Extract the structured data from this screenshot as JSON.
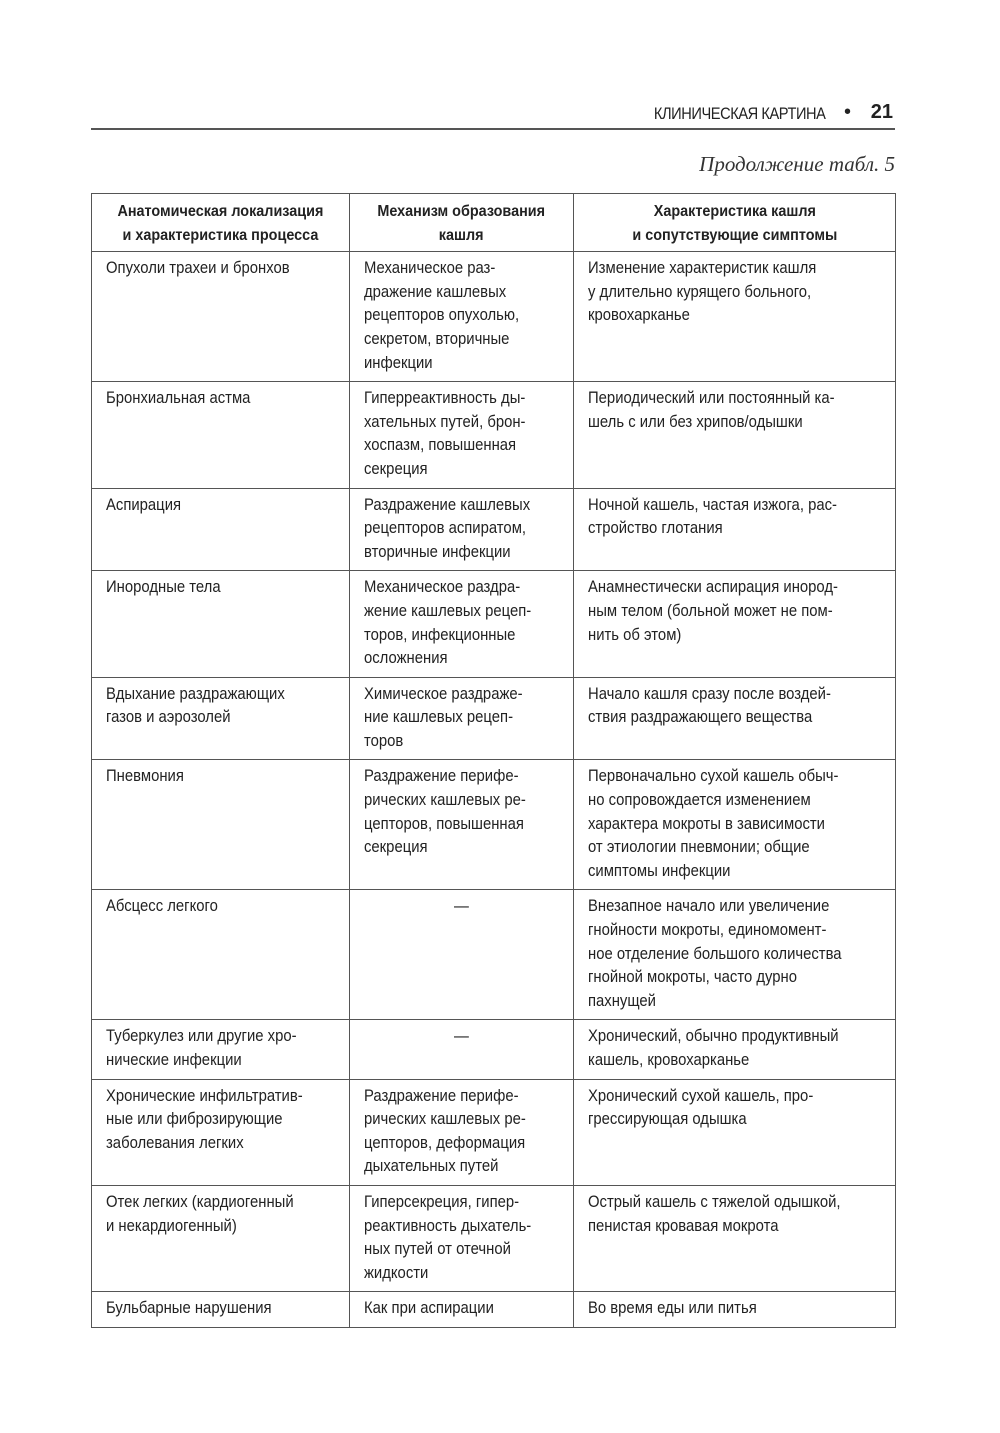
{
  "running_head": {
    "section": "КЛИНИЧЕСКАЯ КАРТИНА",
    "bullet": "•",
    "page_number": "21"
  },
  "continuation": "Продолжение табл. 5",
  "table": {
    "headers": [
      "Анатомическая локализация\nи характеристика процесса",
      "Механизм образования\nкашля",
      "Характеристика кашля\nи сопутствующие симптомы"
    ],
    "rows": [
      [
        "Опухоли трахеи и бронхов",
        "Механическое раз-\nдражение кашлевых\nрецепторов опухолью,\nсекретом, вторичные\nинфекции",
        "Изменение характеристик кашля\nу длительно курящего больного,\nкровохарканье"
      ],
      [
        "Бронхиальная астма",
        "Гиперреактивность ды-\nхательных путей, брон-\nхоспазм, повышенная\nсекреция",
        "Периодический или постоянный ка-\nшель с или без хрипов/одышки"
      ],
      [
        "Аспирация",
        "Раздражение кашлевых\nрецепторов аспиратом,\nвторичные инфекции",
        "Ночной кашель, частая изжога, рас-\nстройство глотания"
      ],
      [
        "Инородные тела",
        "Механическое раздра-\nжение кашлевых рецеп-\nторов, инфекционные\nосложнения",
        "Анамнестически аспирация инород-\nным телом (больной может не пом-\nнить об этом)"
      ],
      [
        "Вдыхание раздражающих\nгазов и аэрозолей",
        "Химическое раздраже-\nние кашлевых рецеп-\nторов",
        "Начало кашля сразу после воздей-\nствия раздражающего вещества"
      ],
      [
        "Пневмония",
        "Раздражение перифе-\nрических кашлевых ре-\nцепторов, повышенная\nсекреция",
        "Первоначально сухой кашель обыч-\nно сопровождается изменением\nхарактера мокроты в зависимости\nот этиологии пневмонии; общие\nсимптомы инфекции"
      ],
      [
        "Абсцесс легкого",
        "—",
        "Внезапное начало или увеличение\nгнойности мокроты, единомомент-\nное отделение большого количества\nгнойной мокроты, часто дурно\nпахнущей"
      ],
      [
        "Туберкулез или другие хро-\nнические инфекции",
        "—",
        "Хронический, обычно продуктивный\nкашель, кровохарканье"
      ],
      [
        "Хронические инфильтратив-\nные или фиброзирующие\nзаболевания легких",
        "Раздражение перифе-\nрических кашлевых ре-\nцепторов, деформация\nдыхательных путей",
        "Хронический сухой кашель, про-\nгрессирующая одышка"
      ],
      [
        "Отек легких (кардиогенный\nи некардиогенный)",
        "Гиперсекреция, гипер-\nреактивность дыхатель-\nных путей от отечной\nжидкости",
        "Острый кашель с тяжелой одышкой,\nпенистая кровавая мокрота"
      ],
      [
        "Бульбарные нарушения",
        "Как при аспирации",
        "Во время еды или питья"
      ]
    ]
  }
}
